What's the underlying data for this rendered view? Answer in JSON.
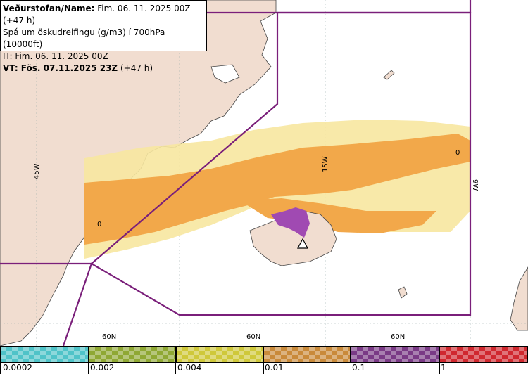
{
  "header": {
    "line1_bold": "Veðurstofan/Name:",
    "line1_rest": " Fim. 06. 11. 2025 00Z (+47 h)",
    "line2": "Spá um öskudreifingu (g/m3) í 700hPa (10000ft)",
    "line3": "IT: Fim. 06. 11. 2025 00Z",
    "line4_bold": "VT:",
    "line4_bold2": " Fös. 07.11.2025 23Z",
    "line4_rest": " (+47 h)"
  },
  "grid_labels": {
    "lon_45w": "45W",
    "lon_15w": "15W",
    "lon_9w": "9W",
    "lat_a": "60N",
    "lat_b": "60N",
    "lat_c": "60N",
    "zero_a": "0",
    "zero_b": "0"
  },
  "legend": {
    "labels": [
      "0.0002",
      "0.002",
      "0.004",
      "0.01",
      "0.1",
      "1"
    ],
    "colors": [
      "#4fc3c8",
      "#8fa833",
      "#cfc83a",
      "#c98a3a",
      "#7a3a86",
      "#d0282e"
    ]
  },
  "colors": {
    "land": "#f1ddd0",
    "fir_boundary": "#7a1f7a",
    "ash_light": "#f7e7a0",
    "ash_mid": "#f2a84a",
    "ash_high": "#a04ab2"
  }
}
